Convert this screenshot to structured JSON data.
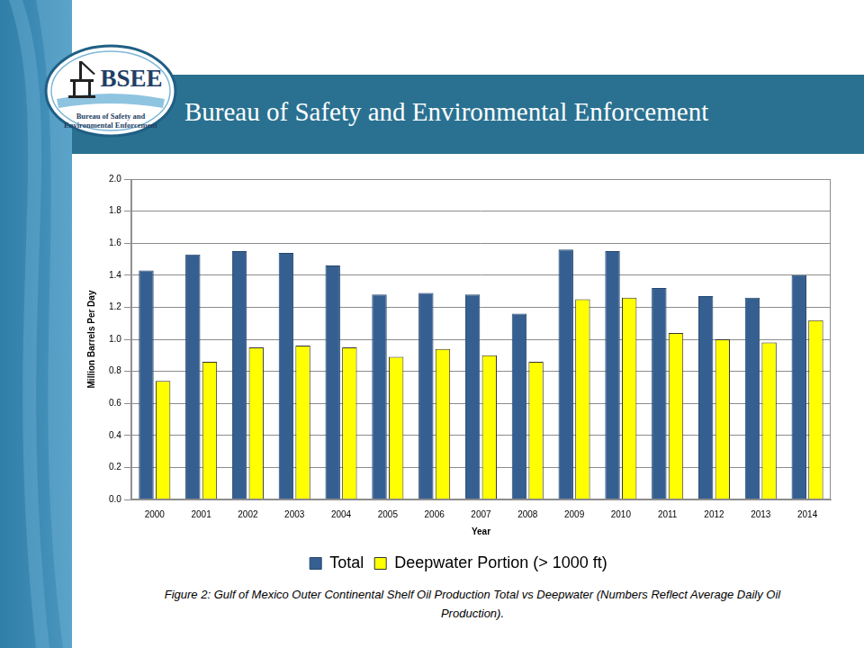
{
  "header": {
    "title": "Bureau of Safety and Environmental Enforcement",
    "logo": {
      "acronym": "BSEE",
      "lines": [
        "Bureau of Safety and",
        "Environmental Enforcement"
      ]
    }
  },
  "chart_data": {
    "type": "bar",
    "x_label": "Year",
    "y_label": "Million Barrels Per Day",
    "categories": [
      "2000",
      "2001",
      "2002",
      "2003",
      "2004",
      "2005",
      "2006",
      "2007",
      "2008",
      "2009",
      "2010",
      "2011",
      "2012",
      "2013",
      "2014"
    ],
    "series": [
      {
        "name": "Total",
        "color": "#365f91",
        "values": [
          1.43,
          1.53,
          1.55,
          1.54,
          1.46,
          1.28,
          1.29,
          1.28,
          1.16,
          1.56,
          1.55,
          1.32,
          1.27,
          1.26,
          1.4
        ]
      },
      {
        "name": "Deepwater Portion (> 1000 ft)",
        "color": "#ffff00",
        "values": [
          0.74,
          0.86,
          0.95,
          0.96,
          0.95,
          0.89,
          0.94,
          0.9,
          0.86,
          1.25,
          1.26,
          1.04,
          1.0,
          0.98,
          1.12
        ]
      }
    ],
    "ylim": [
      0,
      2
    ],
    "yticks": [
      {
        "value": 0,
        "label": "0.0"
      },
      0.2,
      0.4,
      0.6,
      0.8,
      {
        "value": 1,
        "label": "1.0"
      },
      1.2,
      1.4,
      1.6,
      1.8,
      {
        "value": 2,
        "label": "2.0"
      }
    ],
    "grid": true,
    "legend": "bottom"
  },
  "caption": "Figure 2: Gulf of Mexico Outer Continental Shelf Oil Production Total vs Deepwater (Numbers Reflect Average Daily Oil Production)."
}
